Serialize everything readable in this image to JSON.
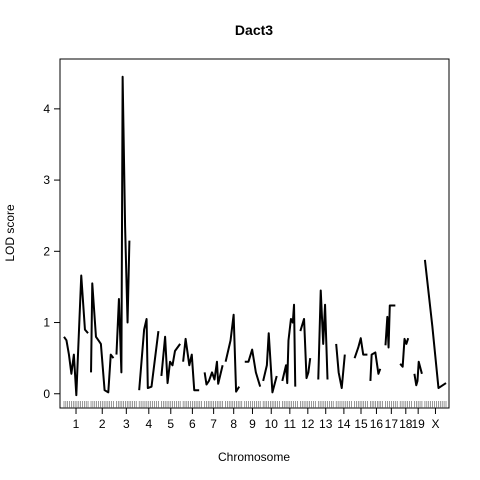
{
  "chart_data": {
    "type": "line",
    "title": "Dact3",
    "xlabel": "Chromosome",
    "ylabel": "LOD score",
    "ylim": [
      -0.2,
      4.7
    ],
    "yticks": [
      0,
      1,
      2,
      3,
      4
    ],
    "chromosomes": [
      {
        "label": "1",
        "length": 195,
        "points": [
          [
            0,
            0.8
          ],
          [
            20,
            0.75
          ],
          [
            40,
            0.55
          ],
          [
            60,
            0.28
          ],
          [
            80,
            0.55
          ],
          [
            100,
            -0.02
          ],
          [
            140,
            1.66
          ],
          [
            170,
            0.9
          ],
          [
            195,
            0.85
          ]
        ]
      },
      {
        "label": "2",
        "length": 182,
        "points": [
          [
            0,
            0.3
          ],
          [
            10,
            1.55
          ],
          [
            40,
            0.8
          ],
          [
            60,
            0.75
          ],
          [
            80,
            0.7
          ],
          [
            110,
            0.05
          ],
          [
            140,
            0.02
          ],
          [
            160,
            0.55
          ],
          [
            182,
            0.5
          ]
        ]
      },
      {
        "label": "3",
        "length": 160,
        "points": [
          [
            0,
            0.55
          ],
          [
            20,
            1.33
          ],
          [
            40,
            0.3
          ],
          [
            50,
            4.45
          ],
          [
            70,
            2.35
          ],
          [
            90,
            1.0
          ],
          [
            105,
            2.15
          ]
        ]
      },
      {
        "label": "4",
        "length": 156,
        "points": [
          [
            0,
            0.05
          ],
          [
            40,
            0.9
          ],
          [
            60,
            1.05
          ],
          [
            70,
            0.08
          ],
          [
            100,
            0.1
          ],
          [
            156,
            0.88
          ]
        ]
      },
      {
        "label": "5",
        "length": 152,
        "points": [
          [
            0,
            0.25
          ],
          [
            30,
            0.8
          ],
          [
            50,
            0.15
          ],
          [
            70,
            0.45
          ],
          [
            90,
            0.4
          ],
          [
            110,
            0.6
          ],
          [
            152,
            0.7
          ]
        ]
      },
      {
        "label": "6",
        "length": 150,
        "points": [
          [
            0,
            0.45
          ],
          [
            20,
            0.77
          ],
          [
            50,
            0.4
          ],
          [
            70,
            0.55
          ],
          [
            90,
            0.05
          ],
          [
            130,
            0.05
          ]
        ]
      },
      {
        "label": "7",
        "length": 146,
        "points": [
          [
            0,
            0.3
          ],
          [
            15,
            0.13
          ],
          [
            35,
            0.18
          ],
          [
            60,
            0.3
          ],
          [
            80,
            0.2
          ],
          [
            100,
            0.45
          ],
          [
            110,
            0.14
          ],
          [
            146,
            0.4
          ]
        ]
      },
      {
        "label": "8",
        "length": 131,
        "points": [
          [
            0,
            0.45
          ],
          [
            40,
            0.75
          ],
          [
            65,
            1.11
          ],
          [
            85,
            0.03
          ],
          [
            110,
            0.1
          ]
        ]
      },
      {
        "label": "9",
        "length": 125,
        "points": [
          [
            0,
            0.45
          ],
          [
            30,
            0.45
          ],
          [
            60,
            0.62
          ],
          [
            90,
            0.3
          ],
          [
            125,
            0.1
          ]
        ]
      },
      {
        "label": "10",
        "length": 131,
        "points": [
          [
            0,
            0.18
          ],
          [
            30,
            0.4
          ],
          [
            45,
            0.85
          ],
          [
            75,
            0.02
          ],
          [
            110,
            0.25
          ]
        ]
      },
      {
        "label": "11",
        "length": 122,
        "points": [
          [
            0,
            0.18
          ],
          [
            30,
            0.4
          ],
          [
            40,
            0.15
          ],
          [
            50,
            0.75
          ],
          [
            70,
            1.05
          ],
          [
            85,
            1.0
          ],
          [
            95,
            1.25
          ],
          [
            105,
            0.1
          ]
        ]
      },
      {
        "label": "12",
        "length": 121,
        "points": [
          [
            0,
            0.88
          ],
          [
            30,
            1.05
          ],
          [
            50,
            0.22
          ],
          [
            65,
            0.3
          ],
          [
            80,
            0.5
          ]
        ]
      },
      {
        "label": "13",
        "length": 121,
        "points": [
          [
            0,
            0.2
          ],
          [
            20,
            1.45
          ],
          [
            40,
            0.7
          ],
          [
            55,
            1.25
          ],
          [
            75,
            0.2
          ]
        ]
      },
      {
        "label": "14",
        "length": 125,
        "points": [
          [
            0,
            0.7
          ],
          [
            20,
            0.3
          ],
          [
            45,
            0.08
          ],
          [
            70,
            0.55
          ]
        ]
      },
      {
        "label": "15",
        "length": 104,
        "points": [
          [
            0,
            0.5
          ],
          [
            30,
            0.65
          ],
          [
            50,
            0.78
          ],
          [
            70,
            0.55
          ],
          [
            104,
            0.55
          ]
        ]
      },
      {
        "label": "16",
        "length": 98,
        "points": [
          [
            0,
            0.18
          ],
          [
            10,
            0.55
          ],
          [
            40,
            0.58
          ],
          [
            65,
            0.28
          ],
          [
            80,
            0.35
          ]
        ]
      },
      {
        "label": "17",
        "length": 95,
        "points": [
          [
            0,
            0.68
          ],
          [
            15,
            1.08
          ],
          [
            25,
            0.65
          ],
          [
            35,
            1.24
          ],
          [
            80,
            1.24
          ]
        ]
      },
      {
        "label": "18",
        "length": 91,
        "points": [
          [
            0,
            0.42
          ],
          [
            20,
            0.38
          ],
          [
            35,
            0.77
          ],
          [
            50,
            0.7
          ],
          [
            65,
            0.78
          ]
        ]
      },
      {
        "label": "19",
        "length": 61,
        "points": [
          [
            0,
            0.28
          ],
          [
            15,
            0.12
          ],
          [
            25,
            0.18
          ],
          [
            35,
            0.45
          ],
          [
            61,
            0.28
          ]
        ]
      },
      {
        "label": "X",
        "length": 171,
        "points": [
          [
            0,
            1.88
          ],
          [
            60,
            0.95
          ],
          [
            110,
            0.08
          ],
          [
            171,
            0.15
          ]
        ]
      }
    ]
  }
}
